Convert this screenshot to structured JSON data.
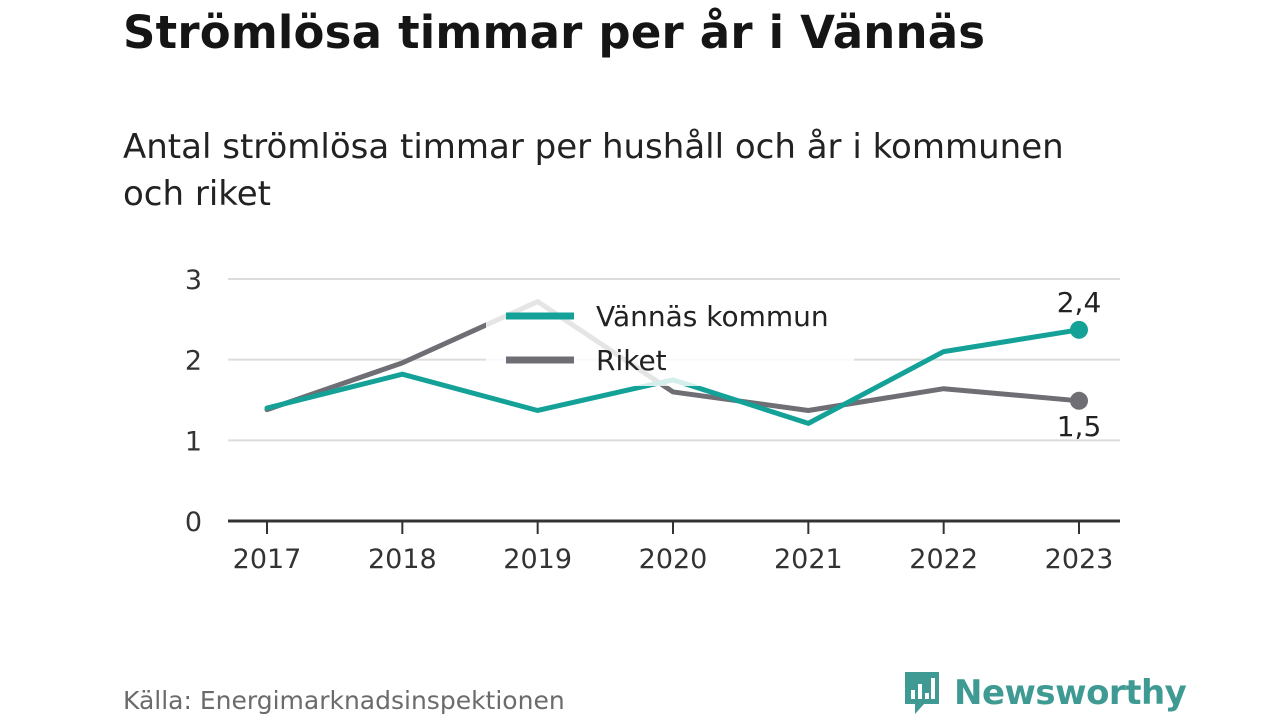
{
  "title": "Strömlösa timmar per år i Vännäs",
  "subtitle": "Antal strömlösa timmar per hushåll och år i kommunen och riket",
  "source": "Källa: Energimarknadsinspektionen",
  "brand": {
    "name": "Newsworthy",
    "icon": "bar-chart-speech-bubble-icon",
    "color": "#3f9a93"
  },
  "chart_data": {
    "type": "line",
    "x": [
      "2017",
      "2018",
      "2019",
      "2020",
      "2021",
      "2022",
      "2023"
    ],
    "ylim": [
      0,
      3
    ],
    "yticks": [
      0,
      1,
      2,
      3
    ],
    "ytick_labels": [
      "0",
      "1",
      "2",
      "3"
    ],
    "grid": true,
    "legend": "top-center",
    "series": [
      {
        "name": "Vännäs kommun",
        "color": "#14a298",
        "values": [
          1.4,
          1.82,
          1.37,
          1.75,
          1.21,
          2.1,
          2.37
        ],
        "end_label": "2,4"
      },
      {
        "name": "Riket",
        "color": "#6f6e74",
        "values": [
          1.38,
          1.96,
          2.72,
          1.6,
          1.37,
          1.64,
          1.49
        ],
        "end_label": "1,5"
      }
    ]
  }
}
